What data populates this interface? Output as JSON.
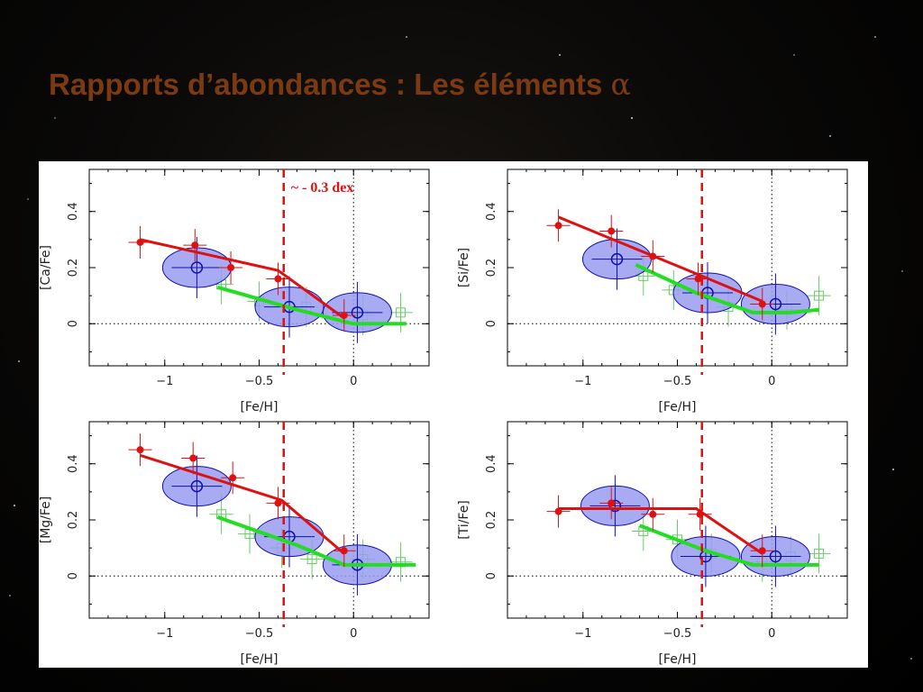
{
  "slide": {
    "title": "Rapports d’abondances : Les éléments",
    "title_symbol": "α"
  },
  "colors": {
    "title": "#7b3a12",
    "red": "#dd1111",
    "green": "#22dd22",
    "green_points": "#66cc66",
    "blue": "#1111aa",
    "ellipse_fill": "#9a9cf0"
  },
  "annotation": "~ - 0.3 dex",
  "chart_data": [
    {
      "type": "scatter",
      "title": "",
      "xlabel": "[Fe/H]",
      "ylabel": "[Ca/Fe]",
      "xlim": [
        -1.4,
        0.4
      ],
      "ylim": [
        -0.15,
        0.55
      ],
      "xticks": [
        -1,
        -0.5,
        0
      ],
      "yticks": [
        0,
        0.2,
        0.4
      ],
      "vline": -0.37,
      "red_points": [
        [
          -1.13,
          0.29
        ],
        [
          -0.84,
          0.28
        ],
        [
          -0.65,
          0.2
        ],
        [
          -0.4,
          0.16
        ],
        [
          -0.05,
          0.03
        ]
      ],
      "red_line": [
        [
          -1.13,
          0.3
        ],
        [
          -0.4,
          0.19
        ],
        [
          -0.05,
          0.02
        ]
      ],
      "green_points": [
        [
          -0.7,
          0.14
        ],
        [
          -0.5,
          0.08
        ],
        [
          -0.25,
          0.06
        ],
        [
          0.05,
          0.03
        ],
        [
          0.25,
          0.04
        ]
      ],
      "green_line": [
        [
          -0.72,
          0.13
        ],
        [
          -0.3,
          0.05
        ],
        [
          0.0,
          0.0
        ],
        [
          0.28,
          0.0
        ]
      ],
      "blue_points": [
        [
          -0.83,
          0.2
        ],
        [
          -0.34,
          0.06
        ],
        [
          0.02,
          0.04
        ]
      ]
    },
    {
      "type": "scatter",
      "title": "",
      "xlabel": "[Fe/H]",
      "ylabel": "[Si/Fe]",
      "xlim": [
        -1.4,
        0.4
      ],
      "ylim": [
        -0.15,
        0.55
      ],
      "xticks": [
        -1,
        -0.5,
        0
      ],
      "yticks": [
        0,
        0.2,
        0.4
      ],
      "vline": -0.37,
      "red_points": [
        [
          -1.13,
          0.35
        ],
        [
          -0.85,
          0.33
        ],
        [
          -0.63,
          0.24
        ],
        [
          -0.39,
          0.16
        ],
        [
          -0.05,
          0.07
        ]
      ],
      "red_line": [
        [
          -1.13,
          0.38
        ],
        [
          -0.37,
          0.17
        ],
        [
          -0.05,
          0.08
        ]
      ],
      "green_points": [
        [
          -0.68,
          0.17
        ],
        [
          -0.52,
          0.12
        ],
        [
          -0.23,
          0.06
        ],
        [
          0.08,
          0.05
        ],
        [
          0.25,
          0.1
        ]
      ],
      "green_line": [
        [
          -0.72,
          0.21
        ],
        [
          -0.4,
          0.11
        ],
        [
          -0.1,
          0.04
        ],
        [
          0.1,
          0.04
        ],
        [
          0.25,
          0.05
        ]
      ],
      "blue_points": [
        [
          -0.82,
          0.23
        ],
        [
          -0.34,
          0.11
        ],
        [
          0.02,
          0.07
        ]
      ]
    },
    {
      "type": "scatter",
      "title": "",
      "xlabel": "[Fe/H]",
      "ylabel": "[Mg/Fe]",
      "xlim": [
        -1.4,
        0.4
      ],
      "ylim": [
        -0.15,
        0.55
      ],
      "xticks": [
        -1,
        -0.5,
        0
      ],
      "yticks": [
        0,
        0.2,
        0.4
      ],
      "vline": -0.37,
      "red_points": [
        [
          -1.13,
          0.45
        ],
        [
          -0.85,
          0.42
        ],
        [
          -0.64,
          0.35
        ],
        [
          -0.4,
          0.26
        ],
        [
          -0.05,
          0.09
        ]
      ],
      "red_line": [
        [
          -1.13,
          0.43
        ],
        [
          -0.38,
          0.27
        ],
        [
          -0.05,
          0.08
        ]
      ],
      "green_points": [
        [
          -0.7,
          0.22
        ],
        [
          -0.55,
          0.15
        ],
        [
          -0.38,
          0.1
        ],
        [
          -0.22,
          0.06
        ],
        [
          0.05,
          0.06
        ],
        [
          0.25,
          0.05
        ]
      ],
      "green_line": [
        [
          -0.72,
          0.21
        ],
        [
          -0.3,
          0.11
        ],
        [
          -0.05,
          0.04
        ],
        [
          0.33,
          0.04
        ]
      ],
      "blue_points": [
        [
          -0.83,
          0.32
        ],
        [
          -0.34,
          0.14
        ],
        [
          0.02,
          0.04
        ]
      ]
    },
    {
      "type": "scatter",
      "title": "",
      "xlabel": "[Fe/H]",
      "ylabel": "[Ti/Fe]",
      "xlim": [
        -1.4,
        0.4
      ],
      "ylim": [
        -0.15,
        0.55
      ],
      "xticks": [
        -1,
        -0.5,
        0
      ],
      "yticks": [
        0,
        0.2,
        0.4
      ],
      "vline": -0.37,
      "red_points": [
        [
          -1.13,
          0.23
        ],
        [
          -0.85,
          0.26
        ],
        [
          -0.63,
          0.22
        ],
        [
          -0.38,
          0.22
        ],
        [
          -0.05,
          0.09
        ]
      ],
      "red_line": [
        [
          -1.13,
          0.24
        ],
        [
          -0.4,
          0.24
        ],
        [
          -0.05,
          0.08
        ]
      ],
      "green_points": [
        [
          -0.68,
          0.16
        ],
        [
          -0.5,
          0.13
        ],
        [
          -0.32,
          0.08
        ],
        [
          -0.05,
          0.05
        ],
        [
          0.1,
          0.07
        ],
        [
          0.25,
          0.08
        ]
      ],
      "green_line": [
        [
          -0.7,
          0.18
        ],
        [
          -0.35,
          0.09
        ],
        [
          -0.1,
          0.04
        ],
        [
          0.25,
          0.04
        ]
      ],
      "blue_points": [
        [
          -0.83,
          0.25
        ],
        [
          -0.35,
          0.07
        ],
        [
          0.02,
          0.07
        ]
      ]
    }
  ]
}
